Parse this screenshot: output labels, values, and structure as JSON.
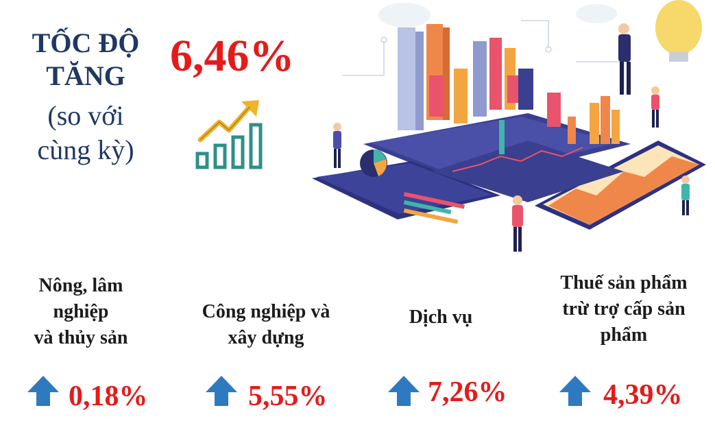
{
  "title": {
    "line1": "TỐC ĐỘ",
    "line2": "TĂNG",
    "line3": "(so với",
    "line4": "cùng kỳ)"
  },
  "headline_rate": "6,46%",
  "colors": {
    "title": "#1f3864",
    "rate": "#e51b1b",
    "arrow": "#2e7ac0",
    "icon_teal": "#2f8f8a",
    "icon_gold": "#f0b323"
  },
  "icons": [
    "growth-chart-icon",
    "up-arrow-icon",
    "analytics-illustration"
  ],
  "sectors": [
    {
      "line1": "Nông, lâm",
      "line2": "nghiệp",
      "line3": "và thủy sản",
      "rate": "0,18%"
    },
    {
      "line1": "Công nghiệp và",
      "line2": "xây dựng",
      "rate": "5,55%"
    },
    {
      "line1": "Dịch vụ",
      "rate": "7,26%"
    },
    {
      "line1": "Thuế sản phẩm",
      "line2": "trừ trợ cấp sản",
      "line3": "phẩm",
      "rate": "4,39%"
    }
  ]
}
